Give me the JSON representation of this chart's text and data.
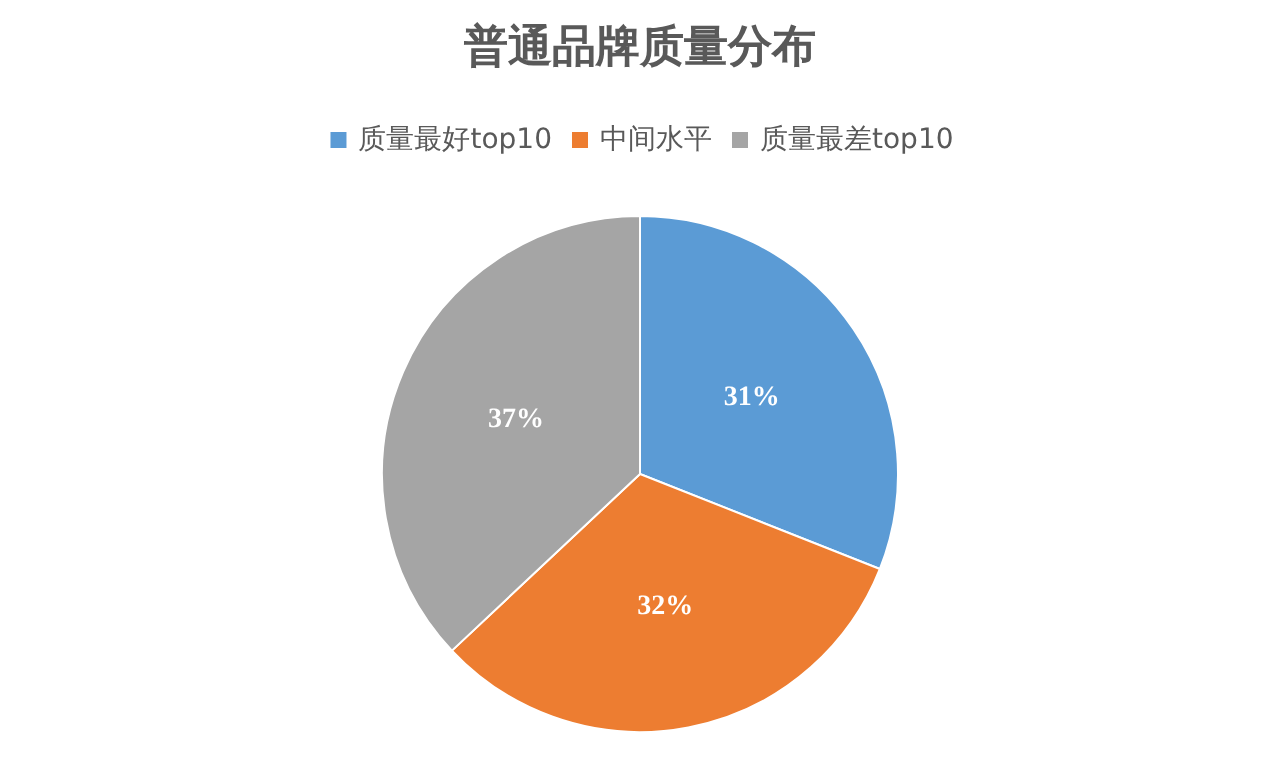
{
  "chart_data": {
    "type": "pie",
    "title": "普通品牌质量分布",
    "categories": [
      "质量最好top10",
      "中间水平",
      "质量最差top10"
    ],
    "values": [
      31,
      32,
      37
    ],
    "colors": [
      "#5b9bd5",
      "#ed7d31",
      "#a5a5a5"
    ],
    "value_labels": [
      "31%",
      "32%",
      "37%"
    ],
    "legend": "top"
  }
}
